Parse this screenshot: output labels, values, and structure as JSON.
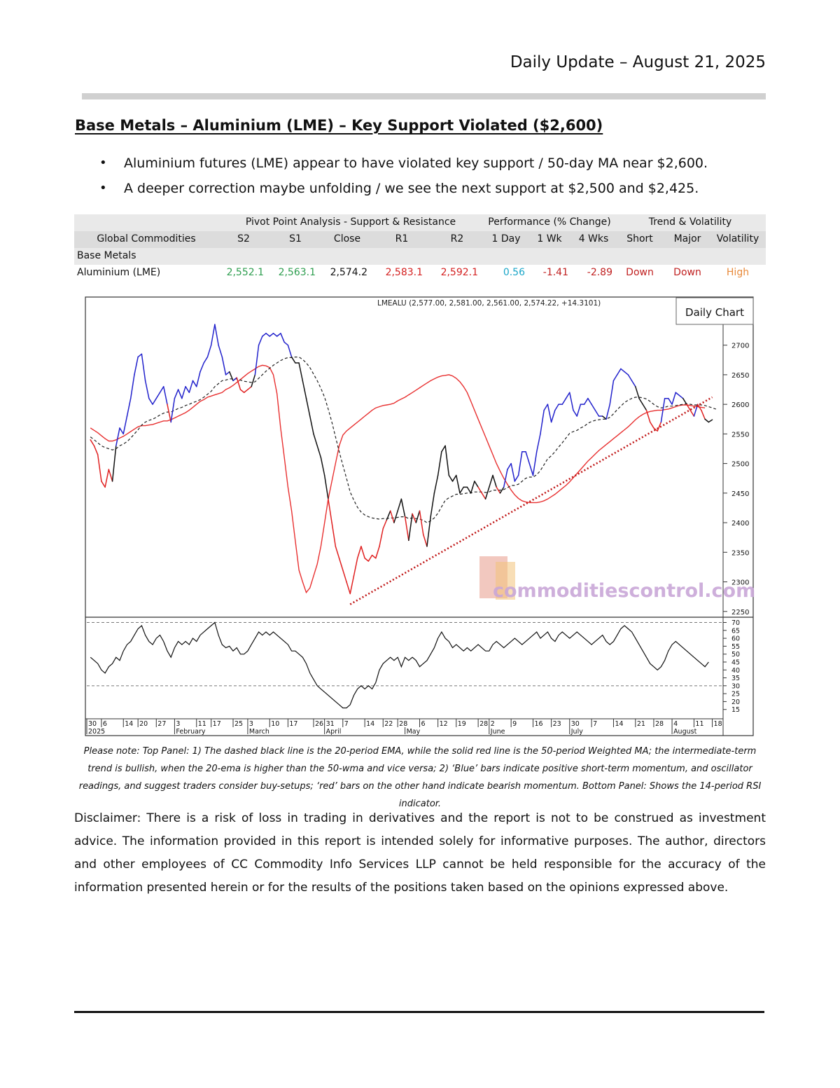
{
  "header": {
    "date": "Daily Update – August 21, 2025"
  },
  "headline": "Base Metals – Aluminium (LME) – Key Support Violated ($2,600)",
  "bullets": [
    "Aluminium futures (LME) appear to have violated key support / 50-day MA near $2,600.",
    "A deeper correction maybe unfolding / we see the next support at $2,500 and $2,425."
  ],
  "table": {
    "group_headers": {
      "pivot": "Pivot Point Analysis - Support & Resistance",
      "performance": "Performance (% Change)",
      "trend": "Trend & Volatility"
    },
    "columns": {
      "commodity": "Global Commodities",
      "s2": "S2",
      "s1": "S1",
      "close": "Close",
      "r1": "R1",
      "r2": "R2",
      "d1": "1 Day",
      "w1": "1 Wk",
      "w4": "4 Wks",
      "short": "Short",
      "major": "Major",
      "volatility": "Volatility"
    },
    "section": "Base Metals",
    "row": {
      "commodity": "Aluminium (LME)",
      "s2": "2,552.1",
      "s1": "2,563.1",
      "close": "2,574.2",
      "r1": "2,583.1",
      "r2": "2,592.1",
      "d1": "0.56",
      "w1": "-1.41",
      "w4": "-2.89",
      "short": "Down",
      "major": "Down",
      "volatility": "High"
    },
    "colors": {
      "support": "#2e9e4f",
      "resistance": "#d42020",
      "positive": "#1aa6c8",
      "negative": "#c02020",
      "volatility": "#e88a3a"
    }
  },
  "chart_data": {
    "type": "line",
    "title": "LMEALU (2,577.00, 2,581.00, 2,561.00, 2,574.22, +14.3101)",
    "badge": "Daily Chart",
    "watermark": "commoditiescontrol.com",
    "y_price": {
      "range": [
        2245,
        2760
      ],
      "ticks": [
        2250,
        2300,
        2350,
        2400,
        2450,
        2500,
        2550,
        2600,
        2650,
        2700
      ]
    },
    "y_rsi": {
      "range": [
        10,
        72
      ],
      "ticks": [
        15,
        20,
        25,
        30,
        35,
        40,
        45,
        50,
        55,
        60,
        65,
        70
      ],
      "bands": [
        70,
        30
      ]
    },
    "x_day_labels": [
      "30",
      "6",
      "14",
      "20",
      "27",
      "3",
      "11",
      "17",
      "25",
      "3",
      "10",
      "17",
      "26",
      "31",
      "7",
      "14",
      "22",
      "28",
      "6",
      "12",
      "19",
      "28",
      "2",
      "9",
      "16",
      "23",
      "30",
      "7",
      "14",
      "21",
      "28",
      "4",
      "11",
      "18"
    ],
    "x_day_index": [
      -1,
      3,
      9,
      13,
      18,
      23,
      29,
      33,
      39,
      43,
      49,
      54,
      61,
      64,
      69,
      75,
      80,
      84,
      90,
      95,
      100,
      106,
      109,
      115,
      121,
      126,
      131,
      137,
      143,
      149,
      154,
      159,
      165,
      170
    ],
    "x_month_labels": [
      "2025",
      "February",
      "March",
      "April",
      "May",
      "June",
      "July",
      "August"
    ],
    "x_month_index": [
      -1,
      23,
      43,
      64,
      86,
      109,
      131,
      159
    ],
    "price": [
      2540,
      2530,
      2515,
      2470,
      2460,
      2490,
      2470,
      2530,
      2560,
      2550,
      2580,
      2610,
      2650,
      2680,
      2685,
      2640,
      2610,
      2600,
      2610,
      2620,
      2630,
      2600,
      2570,
      2610,
      2625,
      2610,
      2630,
      2620,
      2640,
      2630,
      2655,
      2670,
      2680,
      2700,
      2735,
      2700,
      2680,
      2650,
      2655,
      2640,
      2645,
      2625,
      2620,
      2625,
      2630,
      2650,
      2700,
      2715,
      2720,
      2715,
      2720,
      2715,
      2720,
      2705,
      2700,
      2680,
      2670,
      2670,
      2640,
      2610,
      2580,
      2550,
      2530,
      2510,
      2480,
      2440,
      2400,
      2360,
      2340,
      2320,
      2300,
      2280,
      2310,
      2340,
      2360,
      2340,
      2335,
      2345,
      2340,
      2360,
      2390,
      2405,
      2420,
      2400,
      2420,
      2440,
      2410,
      2370,
      2415,
      2400,
      2420,
      2380,
      2360,
      2410,
      2450,
      2480,
      2520,
      2530,
      2480,
      2470,
      2480,
      2450,
      2460,
      2460,
      2450,
      2470,
      2460,
      2450,
      2440,
      2460,
      2480,
      2460,
      2450,
      2460,
      2490,
      2500,
      2470,
      2480,
      2520,
      2520,
      2500,
      2480,
      2520,
      2550,
      2590,
      2600,
      2570,
      2590,
      2600,
      2600,
      2610,
      2620,
      2590,
      2580,
      2600,
      2600,
      2610,
      2600,
      2590,
      2580,
      2580,
      2575,
      2600,
      2640,
      2650,
      2660,
      2655,
      2650,
      2640,
      2630,
      2610,
      2600,
      2590,
      2570,
      2560,
      2555,
      2570,
      2610,
      2610,
      2600,
      2620,
      2615,
      2610,
      2600,
      2590,
      2580,
      2600,
      2590,
      2575,
      2570,
      2574
    ],
    "rsi": [
      48,
      46,
      44,
      40,
      38,
      42,
      44,
      48,
      46,
      52,
      56,
      58,
      62,
      66,
      68,
      62,
      58,
      56,
      60,
      62,
      58,
      52,
      48,
      54,
      58,
      56,
      58,
      56,
      60,
      58,
      62,
      64,
      66,
      68,
      70,
      62,
      56,
      54,
      55,
      52,
      54,
      50,
      50,
      52,
      56,
      60,
      64,
      62,
      64,
      62,
      64,
      62,
      60,
      58,
      56,
      52,
      52,
      50,
      48,
      44,
      38,
      34,
      30,
      28,
      26,
      24,
      22,
      20,
      18,
      16,
      16,
      18,
      24,
      28,
      30,
      28,
      30,
      28,
      32,
      40,
      44,
      46,
      48,
      46,
      48,
      42,
      48,
      46,
      48,
      46,
      42,
      44,
      46,
      50,
      54,
      60,
      64,
      60,
      58,
      54,
      56,
      54,
      52,
      54,
      52,
      54,
      56,
      54,
      52,
      52,
      56,
      58,
      56,
      54,
      56,
      58,
      60,
      58,
      56,
      58,
      60,
      62,
      64,
      60,
      62,
      64,
      60,
      58,
      62,
      64,
      62,
      60,
      62,
      64,
      62,
      60,
      58,
      56,
      58,
      60,
      62,
      58,
      56,
      58,
      62,
      66,
      68,
      66,
      64,
      60,
      56,
      52,
      48,
      44,
      42,
      40,
      42,
      46,
      52,
      56,
      58,
      56,
      54,
      52,
      50,
      48,
      46,
      44,
      42,
      45
    ],
    "ema20": [
      2545,
      2540,
      2535,
      2530,
      2527,
      2525,
      2523,
      2525,
      2530,
      2533,
      2537,
      2543,
      2550,
      2557,
      2565,
      2570,
      2573,
      2575,
      2578,
      2582,
      2585,
      2587,
      2587,
      2590,
      2593,
      2595,
      2598,
      2600,
      2603,
      2605,
      2608,
      2612,
      2617,
      2622,
      2630,
      2635,
      2640,
      2641,
      2643,
      2643,
      2643,
      2641,
      2639,
      2638,
      2637,
      2638,
      2644,
      2650,
      2656,
      2661,
      2666,
      2670,
      2674,
      2677,
      2679,
      2679,
      2680,
      2680,
      2676,
      2670,
      2662,
      2651,
      2640,
      2627,
      2612,
      2592,
      2570,
      2545,
      2520,
      2497,
      2475,
      2452,
      2438,
      2426,
      2418,
      2413,
      2410,
      2408,
      2407,
      2406,
      2407,
      2407,
      2408,
      2408,
      2409,
      2410,
      2410,
      2407,
      2408,
      2407,
      2406,
      2404,
      2400,
      2403,
      2408,
      2416,
      2427,
      2438,
      2442,
      2445,
      2448,
      2448,
      2449,
      2450,
      2450,
      2452,
      2452,
      2452,
      2451,
      2452,
      2455,
      2455,
      2455,
      2456,
      2459,
      2463,
      2463,
      2465,
      2470,
      2475,
      2477,
      2477,
      2481,
      2488,
      2498,
      2508,
      2513,
      2520,
      2528,
      2535,
      2543,
      2551,
      2554,
      2556,
      2560,
      2563,
      2568,
      2571,
      2573,
      2574,
      2575,
      2575,
      2578,
      2584,
      2591,
      2597,
      2603,
      2607,
      2610,
      2612,
      2612,
      2611,
      2609,
      2605,
      2600,
      2596,
      2594,
      2595,
      2597,
      2597,
      2598,
      2599,
      2600,
      2601,
      2600,
      2599,
      2599,
      2599,
      2598,
      2596,
      2594,
      2592
    ],
    "wma50": [
      2560,
      2556,
      2552,
      2547,
      2542,
      2538,
      2538,
      2540,
      2543,
      2546,
      2550,
      2554,
      2558,
      2562,
      2564,
      2564,
      2565,
      2566,
      2568,
      2570,
      2572,
      2572,
      2574,
      2577,
      2580,
      2583,
      2586,
      2590,
      2595,
      2600,
      2605,
      2608,
      2612,
      2614,
      2616,
      2618,
      2620,
      2625,
      2628,
      2632,
      2637,
      2642,
      2647,
      2652,
      2656,
      2660,
      2664,
      2666,
      2665,
      2662,
      2650,
      2618,
      2560,
      2510,
      2460,
      2420,
      2370,
      2320,
      2300,
      2282,
      2290,
      2310,
      2330,
      2360,
      2400,
      2440,
      2470,
      2500,
      2530,
      2548,
      2555,
      2560,
      2565,
      2570,
      2575,
      2580,
      2585,
      2590,
      2594,
      2596,
      2598,
      2599,
      2600,
      2602,
      2606,
      2609,
      2612,
      2616,
      2620,
      2624,
      2628,
      2632,
      2636,
      2640,
      2643,
      2646,
      2648,
      2649,
      2650,
      2648,
      2644,
      2638,
      2630,
      2620,
      2605,
      2590,
      2575,
      2560,
      2545,
      2530,
      2515,
      2500,
      2487,
      2475,
      2465,
      2455,
      2447,
      2441,
      2437,
      2435,
      2434,
      2434,
      2434,
      2435,
      2437,
      2440,
      2444,
      2448,
      2453,
      2458,
      2463,
      2469,
      2476,
      2483,
      2490,
      2497,
      2504,
      2510,
      2516,
      2522,
      2527,
      2532,
      2537,
      2542,
      2547,
      2552,
      2557,
      2562,
      2568,
      2574,
      2579,
      2583,
      2586,
      2588,
      2589,
      2590,
      2590,
      2591,
      2592,
      2594,
      2596,
      2598,
      2599,
      2599,
      2598,
      2597,
      2596,
      2595,
      2594
    ],
    "trendline": [
      [
        71,
        2262
      ],
      [
        170,
        2612
      ]
    ],
    "legend_note": "Please note: Top Panel: 1) The dashed black line is the 20-period EMA, while the solid red line is the 50-period Weighted MA; the intermediate-term trend is bullish, when the 20-ema is higher than the 50-wma and vice versa; 2) ‘Blue’ bars indicate positive short-term momentum, and oscillator readings, and suggest traders consider buy-setups; ‘red’ bars on the other hand indicate bearish momentum. Bottom Panel: Shows the 14-period RSI indicator.",
    "colors": {
      "price_up": "#2222cc",
      "price_down": "#e02020",
      "price_neutral": "#111111",
      "wma": "#e83030",
      "ema": "#222222",
      "trend": "#c01818"
    }
  },
  "disclaimer": "Disclaimer: There is a risk of loss in trading in derivatives and the report is not to be construed as investment advice. The information provided in this report is intended solely for informative purposes. The author, directors and other employees of CC Commodity Info Services LLP cannot be held responsible for the accuracy of the information presented herein or for the results of the positions taken based on the opinions expressed above."
}
